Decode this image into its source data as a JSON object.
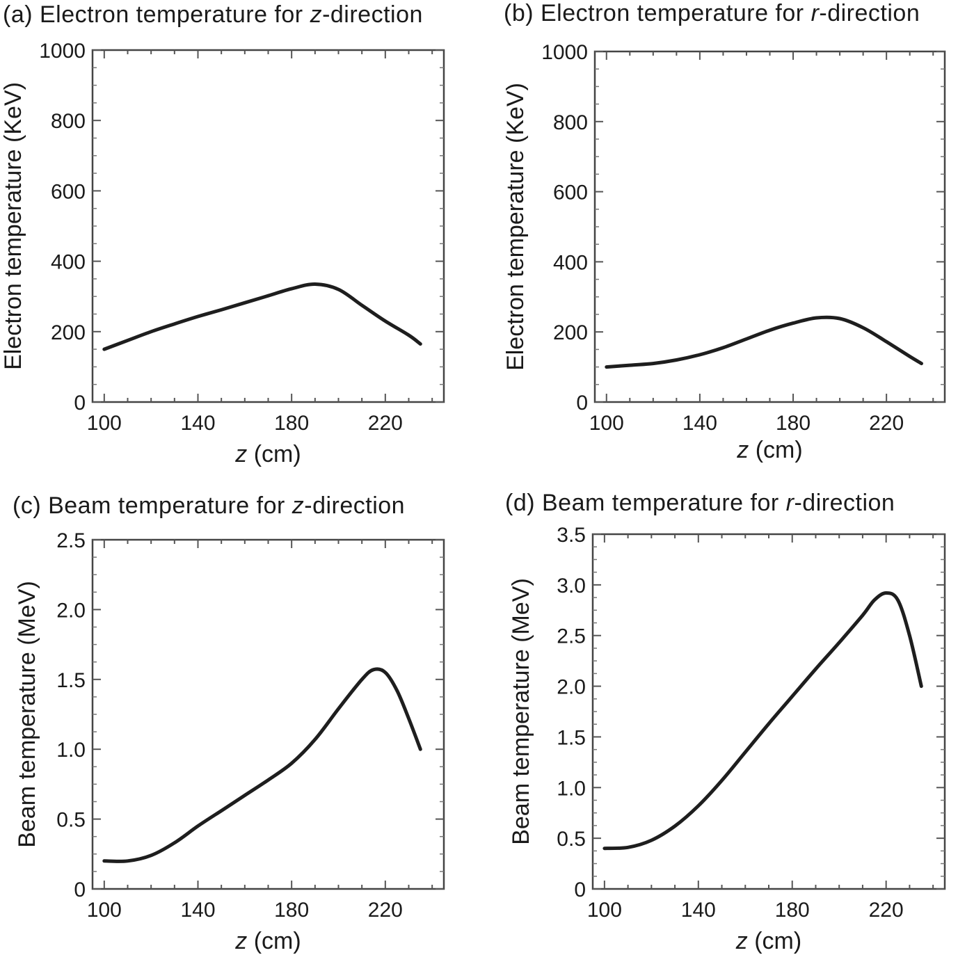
{
  "chart_data": [
    {
      "type": "line",
      "title": {
        "prefix": "(a) Electron temperature for ",
        "axis": "z",
        "suffix": "-direction"
      },
      "xlabel": {
        "axis": "z",
        "rest": " (cm)"
      },
      "ylabel": "Electron temperature (KeV)",
      "xlim": [
        95,
        245
      ],
      "ylim": [
        0,
        1000
      ],
      "xticks": [
        100,
        140,
        180,
        220
      ],
      "yticks": [
        0,
        200,
        400,
        600,
        800,
        1000
      ],
      "ytick_labels": [
        "0",
        "200",
        "400",
        "600",
        "800",
        "1000"
      ],
      "x": [
        100,
        110,
        120,
        130,
        140,
        150,
        160,
        170,
        180,
        190,
        200,
        210,
        220,
        230,
        235
      ],
      "y": [
        150,
        175,
        200,
        222,
        243,
        262,
        282,
        302,
        322,
        335,
        320,
        275,
        230,
        190,
        165
      ]
    },
    {
      "type": "line",
      "title": {
        "prefix": "(b) Electron temperature for ",
        "axis": "r",
        "suffix": "-direction"
      },
      "xlabel": {
        "axis": "z",
        "rest": " (cm)"
      },
      "ylabel": "Electron temperature (KeV)",
      "xlim": [
        95,
        245
      ],
      "ylim": [
        0,
        1000
      ],
      "xticks": [
        100,
        140,
        180,
        220
      ],
      "yticks": [
        0,
        200,
        400,
        600,
        800,
        1000
      ],
      "ytick_labels": [
        "0",
        "200",
        "400",
        "600",
        "800",
        "1000"
      ],
      "x": [
        100,
        110,
        120,
        130,
        140,
        150,
        160,
        170,
        180,
        190,
        200,
        210,
        220,
        230,
        235
      ],
      "y": [
        100,
        105,
        110,
        120,
        135,
        155,
        180,
        205,
        225,
        240,
        238,
        212,
        172,
        130,
        110
      ]
    },
    {
      "type": "line",
      "title": {
        "prefix": "(c) Beam temperature for ",
        "axis": "z",
        "suffix": "-direction"
      },
      "xlabel": {
        "axis": "z",
        "rest": " (cm)"
      },
      "ylabel": "Beam temperature (MeV)",
      "xlim": [
        95,
        245
      ],
      "ylim": [
        0,
        2.5
      ],
      "xticks": [
        100,
        140,
        180,
        220
      ],
      "yticks": [
        0,
        0.5,
        1.0,
        1.5,
        2.0,
        2.5
      ],
      "ytick_labels": [
        "0",
        "0.5",
        "1.0",
        "1.5",
        "2.0",
        "2.5"
      ],
      "x": [
        100,
        110,
        120,
        130,
        140,
        150,
        160,
        170,
        180,
        190,
        200,
        210,
        215,
        220,
        225,
        230,
        235
      ],
      "y": [
        0.2,
        0.2,
        0.24,
        0.33,
        0.45,
        0.56,
        0.67,
        0.78,
        0.9,
        1.07,
        1.29,
        1.5,
        1.57,
        1.55,
        1.42,
        1.22,
        1.0
      ]
    },
    {
      "type": "line",
      "title": {
        "prefix": "(d) Beam temperature for ",
        "axis": "r",
        "suffix": "-direction"
      },
      "xlabel": {
        "axis": "z",
        "rest": " (cm)"
      },
      "ylabel": "Beam temperature (MeV)",
      "xlim": [
        95,
        245
      ],
      "ylim": [
        0,
        3.5
      ],
      "xticks": [
        100,
        140,
        180,
        220
      ],
      "yticks": [
        0,
        0.5,
        1.0,
        1.5,
        2.0,
        2.5,
        3.0,
        3.5
      ],
      "ytick_labels": [
        "0",
        "0.5",
        "1.0",
        "1.5",
        "2.0",
        "2.5",
        "3.0",
        "3.5"
      ],
      "x": [
        100,
        110,
        120,
        130,
        140,
        150,
        160,
        170,
        180,
        190,
        200,
        210,
        215,
        220,
        225,
        230,
        235
      ],
      "y": [
        0.4,
        0.41,
        0.48,
        0.62,
        0.82,
        1.07,
        1.35,
        1.63,
        1.9,
        2.17,
        2.43,
        2.7,
        2.85,
        2.92,
        2.85,
        2.5,
        2.0
      ]
    }
  ]
}
